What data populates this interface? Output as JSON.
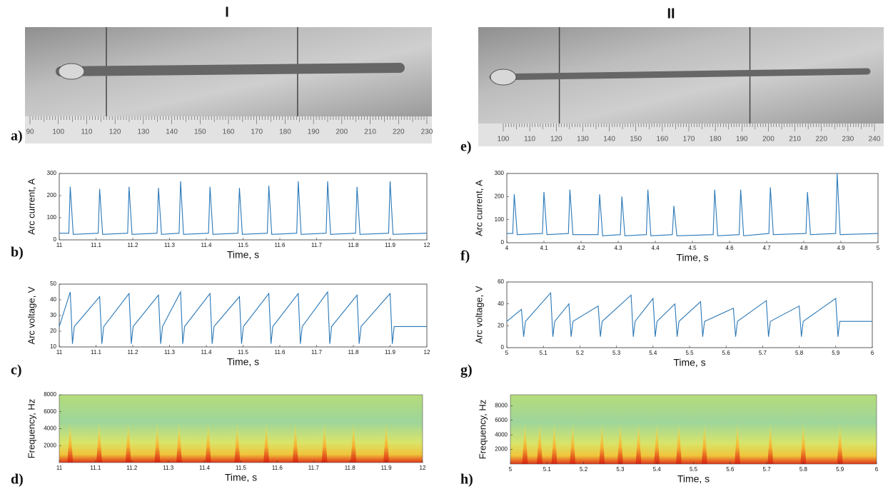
{
  "headings": [
    "I",
    "II"
  ],
  "photos": [
    {
      "label": "a)",
      "ruler": [
        90,
        100,
        110,
        120,
        130,
        140,
        150,
        160,
        170,
        180,
        190,
        200,
        210,
        220,
        230
      ]
    },
    {
      "label": "e)",
      "ruler": [
        100,
        110,
        120,
        130,
        140,
        150,
        160,
        170,
        180,
        190,
        200,
        210,
        220,
        230,
        240
      ]
    }
  ],
  "chart_data": [
    {
      "type": "line",
      "label": "b)",
      "xlabel": "Time, s",
      "ylabel": "Arc current, A",
      "color": "#2a78b8",
      "xlim": [
        11,
        12
      ],
      "ylim": [
        0,
        300
      ],
      "xticks": [
        11,
        11.1,
        11.2,
        11.3,
        11.4,
        11.5,
        11.6,
        11.7,
        11.8,
        11.9,
        12
      ],
      "yticks": [
        0,
        100,
        200,
        300
      ],
      "x": [
        11,
        11.026,
        11.03,
        11.038,
        11.106,
        11.11,
        11.118,
        11.186,
        11.19,
        11.198,
        11.266,
        11.27,
        11.278,
        11.326,
        11.33,
        11.338,
        11.406,
        11.41,
        11.418,
        11.486,
        11.49,
        11.498,
        11.566,
        11.57,
        11.578,
        11.646,
        11.65,
        11.658,
        11.726,
        11.73,
        11.738,
        11.806,
        11.81,
        11.818,
        11.896,
        11.9,
        11.908,
        12
      ],
      "values": [
        30,
        30,
        240,
        25,
        30,
        230,
        25,
        30,
        240,
        25,
        30,
        235,
        25,
        30,
        265,
        25,
        30,
        240,
        25,
        30,
        235,
        25,
        30,
        245,
        25,
        30,
        265,
        25,
        30,
        265,
        25,
        30,
        240,
        25,
        30,
        265,
        25,
        30
      ]
    },
    {
      "type": "line",
      "label": "c)",
      "xlabel": "Time, s",
      "ylabel": "Arc voltage, V",
      "color": "#2a78b8",
      "xlim": [
        11,
        12
      ],
      "ylim": [
        10,
        50
      ],
      "xticks": [
        11,
        11.1,
        11.2,
        11.3,
        11.4,
        11.5,
        11.6,
        11.7,
        11.8,
        11.9,
        12
      ],
      "yticks": [
        10,
        20,
        30,
        40,
        50
      ],
      "x": [
        11,
        11.03,
        11.036,
        11.041,
        11.11,
        11.116,
        11.121,
        11.19,
        11.196,
        11.201,
        11.27,
        11.276,
        11.281,
        11.33,
        11.336,
        11.341,
        11.41,
        11.416,
        11.421,
        11.49,
        11.496,
        11.501,
        11.57,
        11.576,
        11.581,
        11.65,
        11.656,
        11.661,
        11.73,
        11.736,
        11.741,
        11.81,
        11.816,
        11.821,
        11.9,
        11.906,
        11.911,
        12
      ],
      "values": [
        23,
        45,
        12,
        23,
        42,
        12,
        23,
        44,
        12,
        23,
        43,
        12,
        23,
        45,
        12,
        23,
        44,
        12,
        23,
        42,
        12,
        23,
        44,
        12,
        23,
        44,
        12,
        23,
        45,
        12,
        23,
        43,
        12,
        23,
        44,
        12,
        23,
        23
      ]
    },
    {
      "type": "spectrogram",
      "label": "d)",
      "xlabel": "Time, s",
      "ylabel": "Frequency, Hz",
      "xlim": [
        11,
        12
      ],
      "ylim": [
        0,
        8000
      ],
      "xticks": [
        11,
        11.1,
        11.2,
        11.3,
        11.4,
        11.5,
        11.6,
        11.7,
        11.8,
        11.9,
        12
      ],
      "yticks": [
        2000,
        4000,
        6000,
        8000
      ],
      "x": [
        11.03,
        11.11,
        11.19,
        11.27,
        11.33,
        11.41,
        11.49,
        11.57,
        11.65,
        11.73,
        11.81,
        11.9
      ]
    },
    {
      "type": "line",
      "label": "f)",
      "xlabel": "Time, s",
      "ylabel": "Arc current, A",
      "color": "#2a78b8",
      "xlim": [
        4,
        5
      ],
      "ylim": [
        0,
        300
      ],
      "xticks": [
        4,
        4.1,
        4.2,
        4.3,
        4.4,
        4.5,
        4.6,
        4.7,
        4.8,
        4.9,
        5
      ],
      "yticks": [
        0,
        100,
        200,
        300
      ],
      "x": [
        4,
        4.016,
        4.02,
        4.028,
        4.096,
        4.1,
        4.108,
        4.166,
        4.17,
        4.178,
        4.246,
        4.25,
        4.258,
        4.306,
        4.31,
        4.318,
        4.376,
        4.38,
        4.388,
        4.446,
        4.45,
        4.458,
        4.556,
        4.56,
        4.568,
        4.626,
        4.63,
        4.638,
        4.706,
        4.71,
        4.718,
        4.806,
        4.81,
        4.818,
        4.886,
        4.89,
        4.898,
        5
      ],
      "values": [
        40,
        40,
        210,
        35,
        40,
        220,
        35,
        40,
        230,
        35,
        35,
        210,
        30,
        35,
        200,
        30,
        35,
        230,
        30,
        35,
        160,
        30,
        35,
        230,
        30,
        35,
        230,
        30,
        40,
        240,
        35,
        40,
        220,
        35,
        40,
        300,
        35,
        40
      ]
    },
    {
      "type": "line",
      "label": "g)",
      "xlabel": "Time, s",
      "ylabel": "Arc voltage, V",
      "color": "#2a78b8",
      "xlim": [
        5,
        6
      ],
      "ylim": [
        0,
        60
      ],
      "xticks": [
        5,
        5.1,
        5.2,
        5.3,
        5.4,
        5.5,
        5.6,
        5.7,
        5.8,
        5.9,
        6
      ],
      "yticks": [
        0,
        20,
        40,
        60
      ],
      "x": [
        5,
        5.04,
        5.046,
        5.051,
        5.12,
        5.126,
        5.131,
        5.17,
        5.176,
        5.181,
        5.25,
        5.256,
        5.261,
        5.34,
        5.346,
        5.351,
        5.4,
        5.406,
        5.411,
        5.46,
        5.466,
        5.471,
        5.53,
        5.536,
        5.541,
        5.62,
        5.626,
        5.631,
        5.71,
        5.716,
        5.721,
        5.8,
        5.806,
        5.811,
        5.9,
        5.906,
        5.911,
        6
      ],
      "values": [
        24,
        35,
        10,
        24,
        50,
        10,
        24,
        40,
        10,
        24,
        38,
        10,
        24,
        48,
        10,
        24,
        45,
        10,
        24,
        40,
        10,
        24,
        42,
        10,
        24,
        36,
        10,
        24,
        43,
        10,
        24,
        38,
        10,
        24,
        45,
        10,
        24,
        24
      ]
    },
    {
      "type": "spectrogram",
      "label": "h)",
      "xlabel": "Time, s",
      "ylabel": "Frequency, Hz",
      "xlim": [
        5,
        6
      ],
      "ylim": [
        0,
        9500
      ],
      "xticks": [
        5,
        5.1,
        5.2,
        5.3,
        5.4,
        5.5,
        5.6,
        5.7,
        5.8,
        5.9,
        6
      ],
      "yticks": [
        2000,
        4000,
        6000,
        8000
      ],
      "x": [
        5.04,
        5.08,
        5.12,
        5.17,
        5.25,
        5.3,
        5.35,
        5.4,
        5.46,
        5.53,
        5.62,
        5.71,
        5.8,
        5.9
      ]
    }
  ]
}
